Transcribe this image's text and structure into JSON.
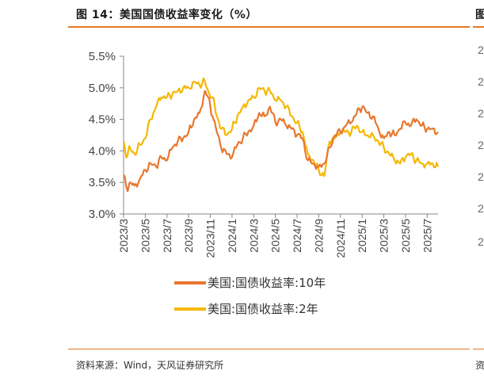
{
  "header": {
    "title": "图 14：美国国债收益率变化（%）",
    "right_title_fragment": "图"
  },
  "footer": {
    "source": "资料来源：Wind，天风证券研究所",
    "right_source_fragment": "资"
  },
  "right_panel_ticks": [
    "2",
    "2",
    "2",
    "2",
    "2",
    "2",
    "2"
  ],
  "colors": {
    "ten_year": "#e8772e",
    "two_year": "#f5b800",
    "rule": "#e87722"
  },
  "chart_data": {
    "type": "line",
    "title": "美国国债收益率变化（%）",
    "xlabel": "",
    "ylabel": "%",
    "ylim": [
      3.0,
      5.5
    ],
    "yticks": [
      "5.5%",
      "5.0%",
      "4.5%",
      "4.0%",
      "3.5%",
      "3.0%"
    ],
    "ytick_values": [
      5.5,
      5.0,
      4.5,
      4.0,
      3.5,
      3.0
    ],
    "xlim": [
      0,
      29
    ],
    "categories": [
      "2023/3",
      "2023/5",
      "2023/7",
      "2023/9",
      "2023/11",
      "2024/1",
      "2024/3",
      "2024/5",
      "2024/7",
      "2024/9",
      "2024/11",
      "2025/1",
      "2025/3",
      "2025/5",
      "2025/7"
    ],
    "category_positions": [
      0,
      2,
      4,
      6,
      8,
      10,
      12,
      14,
      16,
      18,
      20,
      22,
      24,
      26,
      28
    ],
    "legend_placement": "bottom",
    "series": [
      {
        "name": "美国:国债收益率:10年",
        "color": "#e8772e",
        "points": [
          [
            0,
            3.6
          ],
          [
            0.3,
            3.4
          ],
          [
            0.6,
            3.5
          ],
          [
            1,
            3.45
          ],
          [
            1.5,
            3.55
          ],
          [
            2,
            3.7
          ],
          [
            2.5,
            3.8
          ],
          [
            3,
            3.75
          ],
          [
            3.5,
            3.9
          ],
          [
            4,
            3.85
          ],
          [
            4.5,
            4.05
          ],
          [
            5,
            4.15
          ],
          [
            5.5,
            4.2
          ],
          [
            6,
            4.3
          ],
          [
            6.5,
            4.5
          ],
          [
            7,
            4.6
          ],
          [
            7.5,
            4.95
          ],
          [
            7.8,
            4.85
          ],
          [
            8.2,
            4.55
          ],
          [
            8.6,
            4.3
          ],
          [
            9,
            4.05
          ],
          [
            9.5,
            3.95
          ],
          [
            10,
            3.9
          ],
          [
            10.5,
            4.1
          ],
          [
            11,
            4.2
          ],
          [
            11.5,
            4.3
          ],
          [
            12,
            4.4
          ],
          [
            12.5,
            4.6
          ],
          [
            13,
            4.55
          ],
          [
            13.5,
            4.7
          ],
          [
            14,
            4.45
          ],
          [
            14.5,
            4.5
          ],
          [
            15,
            4.4
          ],
          [
            15.5,
            4.35
          ],
          [
            16,
            4.25
          ],
          [
            16.5,
            4.2
          ],
          [
            17,
            3.85
          ],
          [
            17.5,
            3.8
          ],
          [
            18,
            3.75
          ],
          [
            18.5,
            3.8
          ],
          [
            19,
            4.05
          ],
          [
            19.5,
            4.25
          ],
          [
            20,
            4.3
          ],
          [
            20.5,
            4.4
          ],
          [
            21,
            4.45
          ],
          [
            21.5,
            4.6
          ],
          [
            22,
            4.7
          ],
          [
            22.5,
            4.6
          ],
          [
            23,
            4.55
          ],
          [
            23.5,
            4.35
          ],
          [
            24,
            4.2
          ],
          [
            24.5,
            4.3
          ],
          [
            25,
            4.25
          ],
          [
            25.5,
            4.35
          ],
          [
            26,
            4.45
          ],
          [
            26.5,
            4.4
          ],
          [
            27,
            4.5
          ],
          [
            27.5,
            4.4
          ],
          [
            28,
            4.35
          ],
          [
            28.5,
            4.35
          ],
          [
            29,
            4.3
          ]
        ]
      },
      {
        "name": "美国:国债收益率:2年",
        "color": "#f5b800",
        "points": [
          [
            0,
            4.15
          ],
          [
            0.3,
            3.9
          ],
          [
            0.6,
            4.05
          ],
          [
            1,
            3.95
          ],
          [
            1.5,
            4.1
          ],
          [
            2,
            4.2
          ],
          [
            2.5,
            4.5
          ],
          [
            3,
            4.7
          ],
          [
            3.5,
            4.85
          ],
          [
            4,
            4.85
          ],
          [
            4.5,
            4.9
          ],
          [
            5,
            4.95
          ],
          [
            5.5,
            5.0
          ],
          [
            6,
            5.0
          ],
          [
            6.5,
            5.1
          ],
          [
            7,
            5.05
          ],
          [
            7.5,
            5.1
          ],
          [
            7.8,
            4.95
          ],
          [
            8.2,
            4.85
          ],
          [
            8.6,
            4.55
          ],
          [
            9,
            4.35
          ],
          [
            9.5,
            4.25
          ],
          [
            10,
            4.35
          ],
          [
            10.5,
            4.55
          ],
          [
            11,
            4.7
          ],
          [
            11.5,
            4.8
          ],
          [
            12,
            4.85
          ],
          [
            12.5,
            5.0
          ],
          [
            13,
            4.95
          ],
          [
            13.5,
            4.95
          ],
          [
            14,
            4.8
          ],
          [
            14.5,
            4.8
          ],
          [
            15,
            4.7
          ],
          [
            15.5,
            4.55
          ],
          [
            16,
            4.45
          ],
          [
            16.5,
            4.3
          ],
          [
            17,
            3.95
          ],
          [
            17.5,
            3.85
          ],
          [
            18,
            3.7
          ],
          [
            18.5,
            3.6
          ],
          [
            19,
            4.15
          ],
          [
            19.5,
            4.2
          ],
          [
            20,
            4.3
          ],
          [
            20.5,
            4.3
          ],
          [
            21,
            4.3
          ],
          [
            21.5,
            4.4
          ],
          [
            22,
            4.3
          ],
          [
            22.5,
            4.25
          ],
          [
            23,
            4.25
          ],
          [
            23.5,
            4.15
          ],
          [
            24,
            4.05
          ],
          [
            24.5,
            3.95
          ],
          [
            25,
            3.85
          ],
          [
            25.5,
            3.8
          ],
          [
            26,
            3.9
          ],
          [
            26.5,
            3.95
          ],
          [
            27,
            3.85
          ],
          [
            27.5,
            3.8
          ],
          [
            28,
            3.8
          ],
          [
            28.5,
            3.8
          ],
          [
            29,
            3.75
          ]
        ]
      }
    ]
  }
}
